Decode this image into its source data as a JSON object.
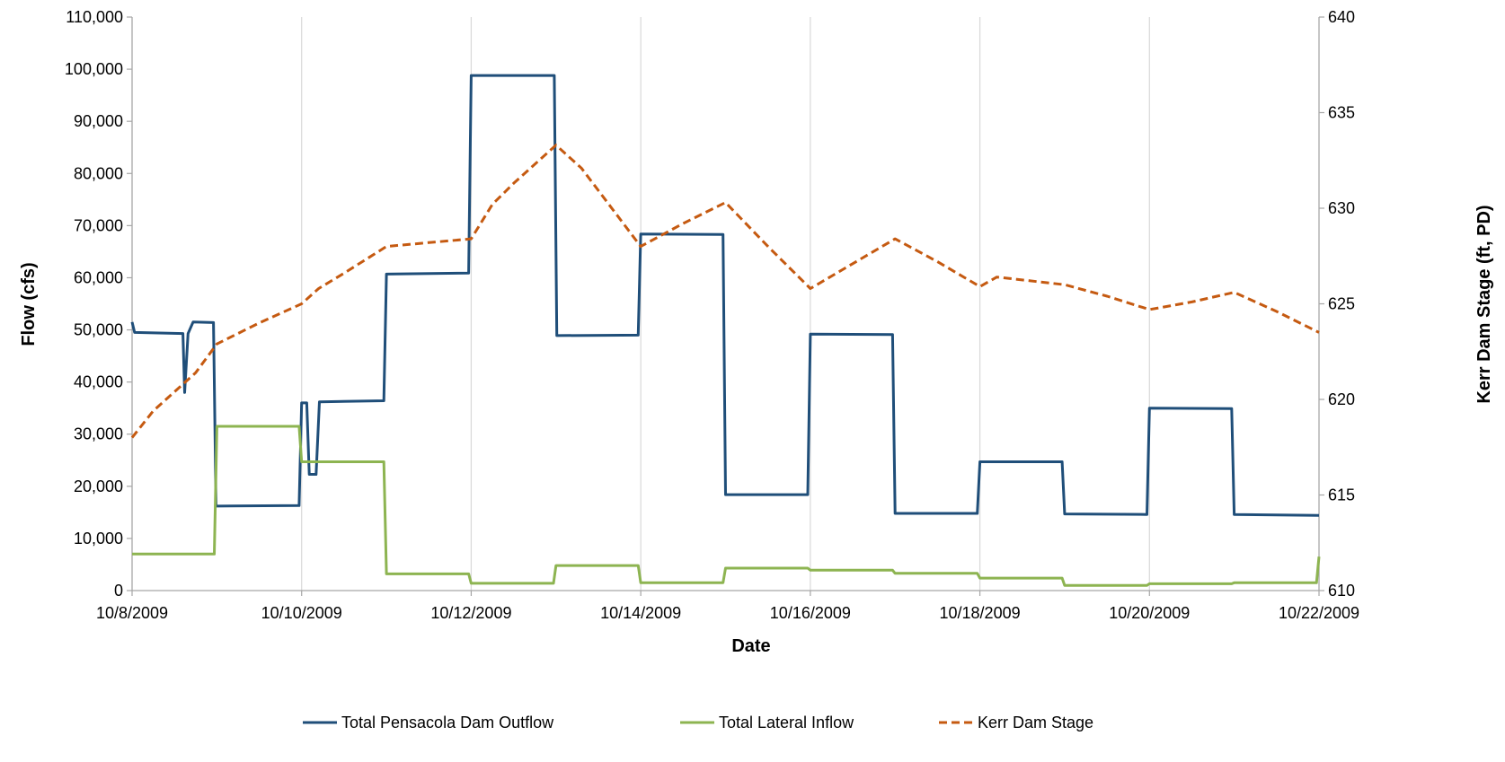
{
  "chart_data": {
    "type": "line",
    "title": "",
    "xlabel": "Date",
    "ylabel_left": "Flow (cfs)",
    "ylabel_right": "Kerr Dam Stage (ft, PD)",
    "xlim": [
      0,
      14
    ],
    "ylim_left": [
      0,
      110000
    ],
    "ylim_right": [
      610,
      640
    ],
    "x_ticks": [
      {
        "x": 0,
        "label": "10/8/2009"
      },
      {
        "x": 2,
        "label": "10/10/2009"
      },
      {
        "x": 4,
        "label": "10/12/2009"
      },
      {
        "x": 6,
        "label": "10/14/2009"
      },
      {
        "x": 8,
        "label": "10/16/2009"
      },
      {
        "x": 10,
        "label": "10/18/2009"
      },
      {
        "x": 12,
        "label": "10/20/2009"
      },
      {
        "x": 14,
        "label": "10/22/2009"
      }
    ],
    "y_ticks_left": [
      {
        "v": 0,
        "label": "0"
      },
      {
        "v": 10000,
        "label": "10,000"
      },
      {
        "v": 20000,
        "label": "20,000"
      },
      {
        "v": 30000,
        "label": "30,000"
      },
      {
        "v": 40000,
        "label": "40,000"
      },
      {
        "v": 50000,
        "label": "50,000"
      },
      {
        "v": 60000,
        "label": "60,000"
      },
      {
        "v": 70000,
        "label": "70,000"
      },
      {
        "v": 80000,
        "label": "80,000"
      },
      {
        "v": 90000,
        "label": "90,000"
      },
      {
        "v": 100000,
        "label": "100,000"
      },
      {
        "v": 110000,
        "label": "110,000"
      }
    ],
    "y_ticks_right": [
      {
        "v": 610,
        "label": "610"
      },
      {
        "v": 615,
        "label": "615"
      },
      {
        "v": 620,
        "label": "620"
      },
      {
        "v": 625,
        "label": "625"
      },
      {
        "v": 630,
        "label": "630"
      },
      {
        "v": 635,
        "label": "635"
      },
      {
        "v": 640,
        "label": "640"
      }
    ],
    "grid": {
      "vertical": true,
      "horizontal": false
    },
    "legend_position": "bottom",
    "series": [
      {
        "name": "Total Pensacola Dam Outflow",
        "axis": "left",
        "color": "#1f4e79",
        "dash": "solid",
        "points": [
          [
            0,
            51500
          ],
          [
            0.03,
            49500
          ],
          [
            0.6,
            49300
          ],
          [
            0.62,
            38000
          ],
          [
            0.66,
            49300
          ],
          [
            0.72,
            51500
          ],
          [
            0.96,
            51400
          ],
          [
            0.99,
            16200
          ],
          [
            1.97,
            16300
          ],
          [
            2.0,
            36000
          ],
          [
            2.06,
            36000
          ],
          [
            2.09,
            22300
          ],
          [
            2.17,
            22300
          ],
          [
            2.21,
            36200
          ],
          [
            2.97,
            36400
          ],
          [
            3.0,
            60700
          ],
          [
            3.97,
            60900
          ],
          [
            4.0,
            98800
          ],
          [
            4.98,
            98800
          ],
          [
            5.01,
            48900
          ],
          [
            5.97,
            49000
          ],
          [
            6.0,
            68400
          ],
          [
            6.97,
            68300
          ],
          [
            7.0,
            18400
          ],
          [
            7.97,
            18400
          ],
          [
            8.0,
            49200
          ],
          [
            8.97,
            49100
          ],
          [
            9.0,
            14800
          ],
          [
            9.97,
            14800
          ],
          [
            10.0,
            24700
          ],
          [
            10.97,
            24700
          ],
          [
            11.0,
            14700
          ],
          [
            11.97,
            14600
          ],
          [
            12.0,
            35000
          ],
          [
            12.97,
            34900
          ],
          [
            13.0,
            14600
          ],
          [
            14.0,
            14400
          ]
        ]
      },
      {
        "name": "Total Lateral Inflow",
        "axis": "left",
        "color": "#8db451",
        "dash": "solid",
        "points": [
          [
            0,
            7000
          ],
          [
            0.97,
            7000
          ],
          [
            1.0,
            31500
          ],
          [
            1.97,
            31500
          ],
          [
            2.0,
            24700
          ],
          [
            2.97,
            24700
          ],
          [
            3.0,
            3200
          ],
          [
            3.97,
            3200
          ],
          [
            4.0,
            1400
          ],
          [
            4.97,
            1400
          ],
          [
            5.0,
            4800
          ],
          [
            5.97,
            4800
          ],
          [
            6.0,
            1500
          ],
          [
            6.97,
            1500
          ],
          [
            7.0,
            4300
          ],
          [
            7.97,
            4300
          ],
          [
            8.0,
            3900
          ],
          [
            8.97,
            3900
          ],
          [
            9.0,
            3300
          ],
          [
            9.97,
            3300
          ],
          [
            10.0,
            2400
          ],
          [
            10.97,
            2400
          ],
          [
            11.0,
            1000
          ],
          [
            11.97,
            1000
          ],
          [
            12.0,
            1300
          ],
          [
            12.97,
            1300
          ],
          [
            13.0,
            1500
          ],
          [
            13.97,
            1500
          ],
          [
            14.0,
            6500
          ]
        ]
      },
      {
        "name": "Kerr Dam Stage",
        "axis": "right",
        "color": "#c55a11",
        "dash": "dashed",
        "points": [
          [
            0,
            618.0
          ],
          [
            0.25,
            619.4
          ],
          [
            0.5,
            620.4
          ],
          [
            0.75,
            621.4
          ],
          [
            1.0,
            622.9
          ],
          [
            1.5,
            624.0
          ],
          [
            2.0,
            625.0
          ],
          [
            2.2,
            625.8
          ],
          [
            2.5,
            626.6
          ],
          [
            3.0,
            628.0
          ],
          [
            3.5,
            628.2
          ],
          [
            4.0,
            628.4
          ],
          [
            4.25,
            630.2
          ],
          [
            4.5,
            631.3
          ],
          [
            5.0,
            633.3
          ],
          [
            5.3,
            632.1
          ],
          [
            6.0,
            628.0
          ],
          [
            6.5,
            629.2
          ],
          [
            7.0,
            630.3
          ],
          [
            7.5,
            628.0
          ],
          [
            8.0,
            625.8
          ],
          [
            8.5,
            627.1
          ],
          [
            9.0,
            628.4
          ],
          [
            9.5,
            627.2
          ],
          [
            10.0,
            625.9
          ],
          [
            10.2,
            626.4
          ],
          [
            11.0,
            626.0
          ],
          [
            11.5,
            625.4
          ],
          [
            12.0,
            624.7
          ],
          [
            12.5,
            625.1
          ],
          [
            13.0,
            625.6
          ],
          [
            13.5,
            624.6
          ],
          [
            14.0,
            623.5
          ]
        ]
      }
    ]
  }
}
